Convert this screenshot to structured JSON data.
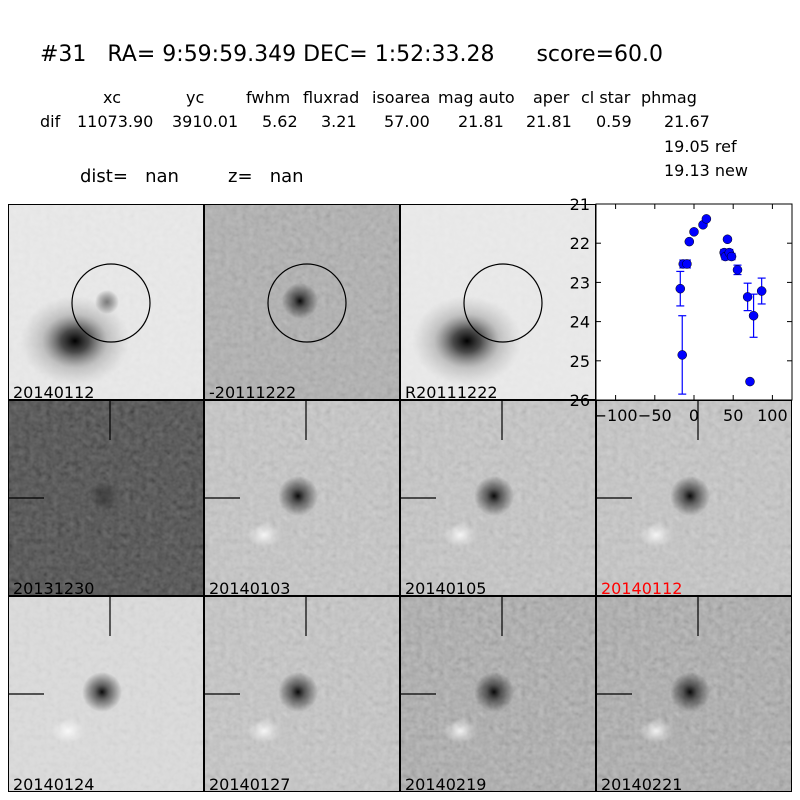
{
  "title": "#31   RA= 9:59:59.349 DEC= 1:52:33.28      score=60.0",
  "table": {
    "headers": [
      "xc",
      "yc",
      "fwhm",
      "fluxrad",
      "isoarea",
      "mag auto",
      "aper",
      "cl star",
      "phmag"
    ],
    "row_label": "dif",
    "values": [
      "11073.90",
      "3910.01",
      "5.62",
      "3.21",
      "57.00",
      "21.81",
      "21.81",
      "0.59",
      "21.67"
    ],
    "ref": "19.05 ref",
    "new": "19.13 new"
  },
  "dist": "dist=   nan",
  "z": "z=   nan",
  "panels": [
    {
      "label": "20140112",
      "style": "galaxy-source",
      "circle": true
    },
    {
      "label": "-20111222",
      "style": "diff",
      "circle": true
    },
    {
      "label": "R20111222",
      "style": "galaxy",
      "circle": true
    },
    {
      "label": "20131230",
      "style": "noisy",
      "crosshair": true
    },
    {
      "label": "20140103",
      "style": "source",
      "crosshair": true
    },
    {
      "label": "20140105",
      "style": "source",
      "crosshair": true
    },
    {
      "label": "20140112",
      "style": "source",
      "crosshair": true,
      "label_color": "#ff0000"
    },
    {
      "label": "20140124",
      "style": "source-smooth",
      "crosshair": true
    },
    {
      "label": "20140127",
      "style": "source",
      "crosshair": true
    },
    {
      "label": "20140219",
      "style": "source-noisy",
      "crosshair": true
    },
    {
      "label": "20140221",
      "style": "source-noisy",
      "crosshair": true
    }
  ],
  "chart_data": {
    "type": "scatter",
    "x": [
      -17.5,
      -15,
      -13.7,
      -9,
      -6,
      0,
      11.5,
      15.8,
      42.7,
      38.5,
      40,
      45,
      47.9,
      55.5,
      68.4,
      71.4,
      76,
      86.3
    ],
    "y": [
      23.16,
      24.85,
      22.53,
      22.53,
      21.96,
      21.71,
      21.53,
      21.38,
      21.9,
      22.24,
      22.34,
      22.24,
      22.34,
      22.68,
      23.37,
      25.53,
      23.85,
      23.22
    ],
    "yerr": [
      0.44,
      1.0,
      0.1,
      0.1,
      0.03,
      0.03,
      0.03,
      0.03,
      0.05,
      0.08,
      0.08,
      0.08,
      0.08,
      0.12,
      0.35,
      0.05,
      0.55,
      0.33
    ],
    "xlim": [
      -125,
      125
    ],
    "ylim": [
      26,
      21
    ],
    "y_inverted": true,
    "xticks": [
      "-100",
      "-50",
      "0",
      "50",
      "100"
    ],
    "yticks": [
      "21",
      "22",
      "23",
      "24",
      "25",
      "26"
    ],
    "color": "#0000ff",
    "grid": false
  }
}
